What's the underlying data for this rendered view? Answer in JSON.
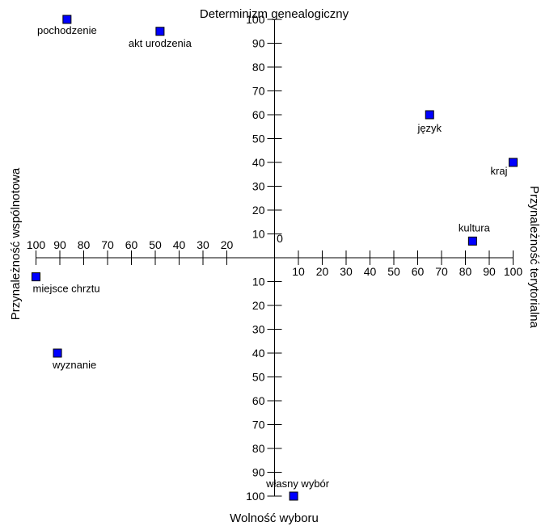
{
  "chart_data": {
    "type": "scatter",
    "title": "",
    "axis_labels": {
      "top": "Determinizm genealogiczny",
      "bottom": "Wolność wyboru",
      "left": "Przynależność wspólnotowa",
      "right": "Przynależność terytorialna"
    },
    "origin_label": "0",
    "xlim": [
      -100,
      100
    ],
    "ylim": [
      -100,
      100
    ],
    "x_tick_labels": [
      "100",
      "90",
      "80",
      "70",
      "60",
      "50",
      "40",
      "30",
      "20",
      "10",
      "20",
      "30",
      "40",
      "50",
      "60",
      "70",
      "80",
      "90",
      "100"
    ],
    "x_tick_values": [
      -100,
      -90,
      -80,
      -70,
      -60,
      -50,
      -40,
      -30,
      -20,
      10,
      20,
      30,
      40,
      50,
      60,
      70,
      80,
      90,
      100
    ],
    "y_tick_labels": [
      "100",
      "90",
      "80",
      "70",
      "60",
      "50",
      "40",
      "30",
      "20",
      "10",
      "10",
      "20",
      "30",
      "40",
      "50",
      "60",
      "70",
      "80",
      "90",
      "100"
    ],
    "y_tick_values": [
      100,
      90,
      80,
      70,
      60,
      50,
      40,
      30,
      20,
      10,
      -10,
      -20,
      -30,
      -40,
      -50,
      -60,
      -70,
      -80,
      -90,
      -100
    ],
    "point_color": "#0000ff",
    "points": [
      {
        "label": "pochodzenie",
        "x": -87,
        "y": 100
      },
      {
        "label": "akt urodzenia",
        "x": -48,
        "y": 95
      },
      {
        "label": "język",
        "x": 65,
        "y": 60
      },
      {
        "label": "kraj",
        "x": 100,
        "y": 40
      },
      {
        "label": "kultura",
        "x": 83,
        "y": 7
      },
      {
        "label": "miejsce chrztu",
        "x": -100,
        "y": -8
      },
      {
        "label": "wyznanie",
        "x": -91,
        "y": -40
      },
      {
        "label": "własny wybór",
        "x": 8,
        "y": -100
      }
    ]
  }
}
